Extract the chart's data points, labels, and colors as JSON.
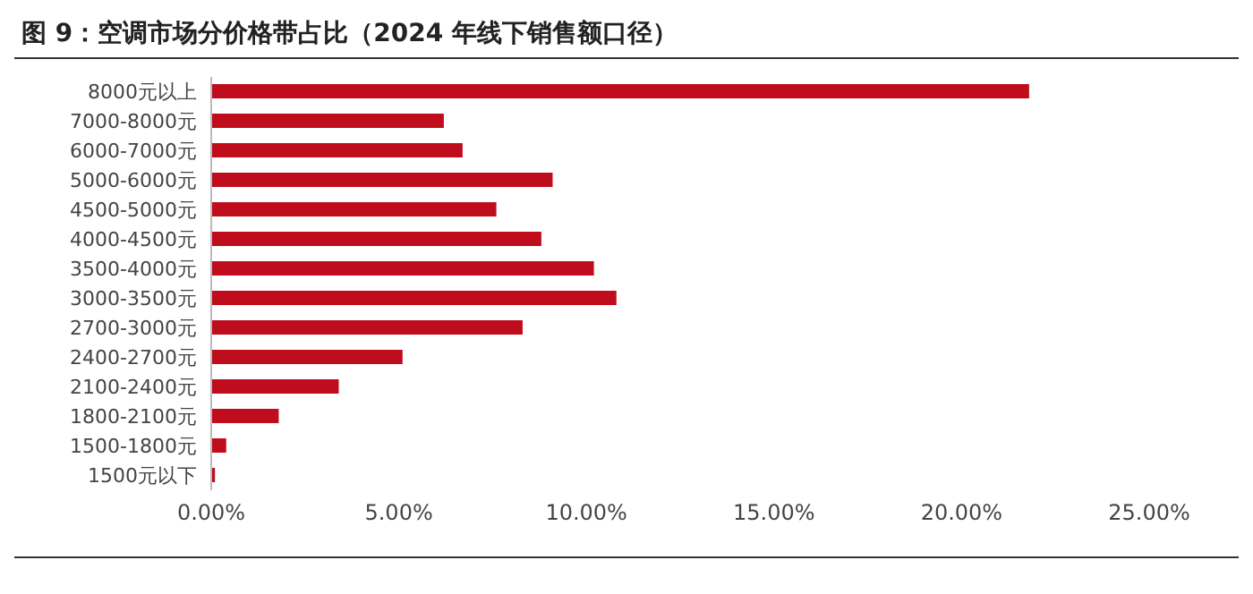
{
  "chart_data": {
    "type": "bar",
    "orientation": "horizontal",
    "title": "图 9：空调市场分价格带占比（2024 年线下销售额口径）",
    "categories": [
      "8000元以上",
      "7000-8000元",
      "6000-7000元",
      "5000-6000元",
      "4500-5000元",
      "4000-4500元",
      "3500-4000元",
      "3000-3500元",
      "2700-3000元",
      "2400-2700元",
      "2100-2400元",
      "1800-2100元",
      "1500-1800元",
      "1500元以下"
    ],
    "values": [
      21.8,
      6.2,
      6.7,
      9.1,
      7.6,
      8.8,
      10.2,
      10.8,
      8.3,
      5.1,
      3.4,
      1.8,
      0.4,
      0.1
    ],
    "color": "#c00d1e",
    "xlim": [
      0,
      25
    ],
    "xticks": [
      {
        "value": 0,
        "label": "0.00%"
      },
      {
        "value": 5,
        "label": "5.00%"
      },
      {
        "value": 10,
        "label": "10.00%"
      },
      {
        "value": 15,
        "label": "15.00%"
      },
      {
        "value": 20,
        "label": "20.00%"
      },
      {
        "value": 25,
        "label": "25.00%"
      }
    ],
    "grid": false,
    "legend": false
  }
}
